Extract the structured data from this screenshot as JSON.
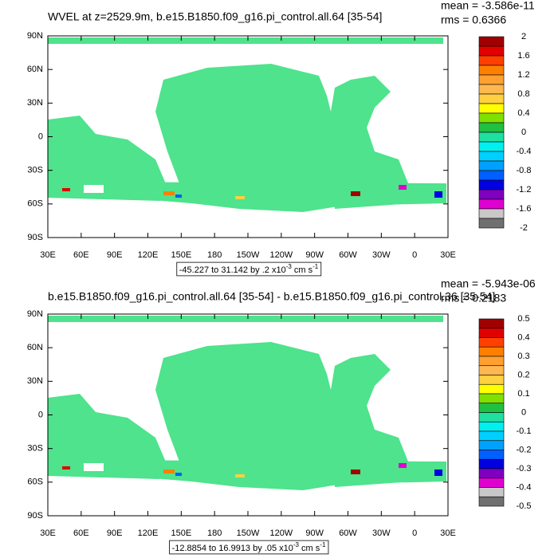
{
  "xlim": [
    30,
    390
  ],
  "ylim": [
    -90,
    90
  ],
  "lat_ticks": [
    {
      "value": 90,
      "label": "90N"
    },
    {
      "value": 60,
      "label": "60N"
    },
    {
      "value": 30,
      "label": "30N"
    },
    0,
    {
      "value": -30,
      "label": "30S"
    },
    {
      "value": -60,
      "label": "60S"
    },
    {
      "value": -90,
      "label": "90S"
    }
  ],
  "lon_ticks": [
    {
      "value": 30,
      "label": "30E"
    },
    {
      "value": 60,
      "label": "60E"
    },
    {
      "value": 90,
      "label": "90E"
    },
    {
      "value": 120,
      "label": "120E"
    },
    {
      "value": 150,
      "label": "150E"
    },
    180,
    {
      "value": 210,
      "label": "150W"
    },
    {
      "value": 240,
      "label": "120W"
    },
    {
      "value": 270,
      "label": "90W"
    },
    {
      "value": 300,
      "label": "60W"
    },
    {
      "value": 330,
      "label": "30W"
    },
    {
      "value": 360,
      "label": "0"
    },
    {
      "value": 390,
      "label": "30E"
    }
  ],
  "panels": [
    {
      "title": "WVEL at z=2529.9m, b.e15.B1850.f09_g16.pi_control.all.64 [35-54]",
      "mean": "mean = -3.586e-11",
      "rms": "rms = 0.6366",
      "range_label": {
        "text": "-45.227 to 31.142 by .2 x10",
        "exp": "-3",
        "unit": " cm s",
        "unit_exp": "-1"
      },
      "colorbar": {
        "levels": [
          2,
          1.6,
          1.2,
          0.8,
          0.4,
          0,
          -0.4,
          -0.8,
          -1.2,
          -1.6,
          -2
        ],
        "colors": [
          "#a00000",
          "#e00000",
          "#ff4000",
          "#ff8000",
          "#ffa030",
          "#ffb850",
          "#ffd040",
          "#ffff00",
          "#80e000",
          "#20c040",
          "#20e0a0",
          "#00f0f0",
          "#00d0ff",
          "#00a0ff",
          "#0060ff",
          "#0000e0",
          "#8000c0",
          "#e000d0",
          "#c8c8c8",
          "#707070"
        ]
      }
    },
    {
      "title": "b.e15.B1850.f09_g16.pi_control.all.64 [35-54] - b.e15.B1850.f09_g16.pi_control.36 [35-54]",
      "mean": "mean = -5.943e-06",
      "rms": "rms = 0.2183",
      "range_label": {
        "text": "-12.8854 to 16.9913 by .05 x10",
        "exp": "-3",
        "unit": " cm s",
        "unit_exp": "-1"
      },
      "colorbar": {
        "levels": [
          0.5,
          0.4,
          0.3,
          0.2,
          0.1,
          0,
          -0.1,
          -0.2,
          -0.3,
          -0.4,
          -0.5
        ],
        "colors": [
          "#a00000",
          "#e00000",
          "#ff4000",
          "#ff8000",
          "#ffa030",
          "#ffb850",
          "#ffd040",
          "#ffff00",
          "#80e000",
          "#20c040",
          "#20e0a0",
          "#00f0f0",
          "#00d0ff",
          "#00a0ff",
          "#0060ff",
          "#0000e0",
          "#8000c0",
          "#e000d0",
          "#c8c8c8",
          "#707070"
        ]
      }
    }
  ]
}
